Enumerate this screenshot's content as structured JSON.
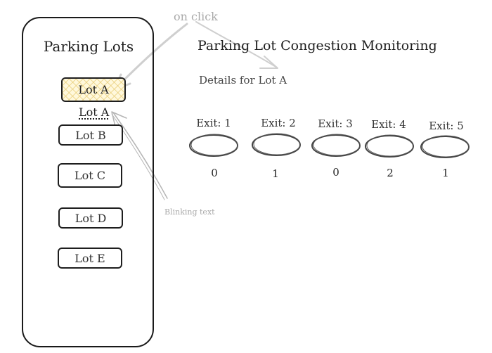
{
  "annotations": {
    "on_click": "on click",
    "blinking_text": "Blinking text"
  },
  "sidebar": {
    "title": "Parking Lots",
    "lots": [
      {
        "label": "Lot A",
        "selected": true
      },
      {
        "label": "Lot B",
        "selected": false
      },
      {
        "label": "Lot C",
        "selected": false
      },
      {
        "label": "Lot D",
        "selected": false
      },
      {
        "label": "Lot E",
        "selected": false
      }
    ],
    "blinking_label": "Lot A"
  },
  "main": {
    "title": "Parking Lot Congestion Monitoring",
    "details": "Details for Lot A",
    "exits": [
      {
        "label": "Exit: 1",
        "value": "0"
      },
      {
        "label": "Exit: 2",
        "value": "1"
      },
      {
        "label": "Exit: 3",
        "value": "0"
      },
      {
        "label": "Exit: 4",
        "value": "2"
      },
      {
        "label": "Exit: 5",
        "value": "1"
      }
    ]
  },
  "colors": {
    "stroke": "#1e1e1e",
    "annotation": "#aaaaaa",
    "highlight": "#fff8dc"
  }
}
